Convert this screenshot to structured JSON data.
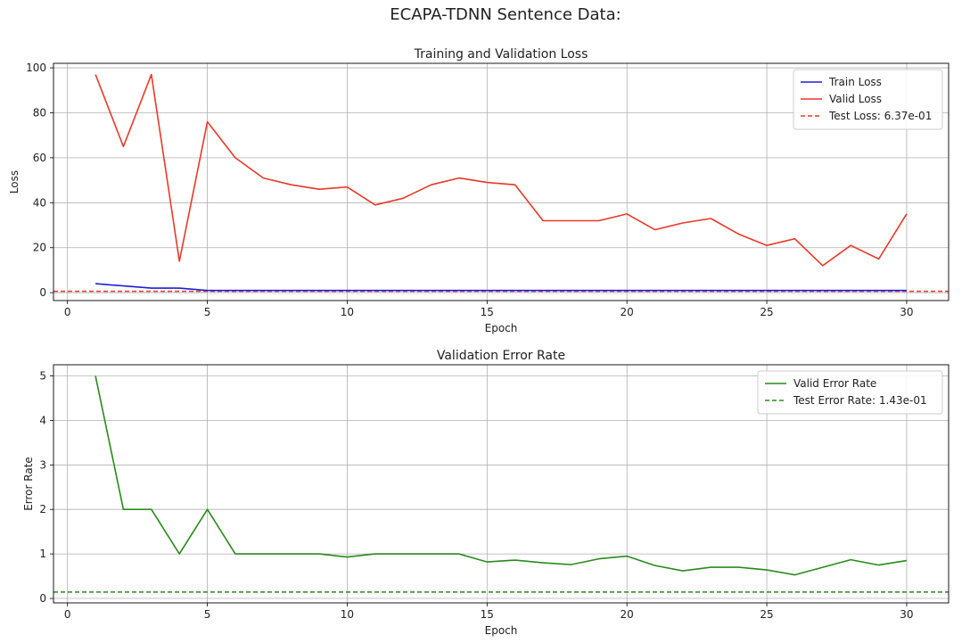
{
  "figure": {
    "suptitle": "ECAPA-TDNN Sentence Data:"
  },
  "chart_data": [
    {
      "type": "line",
      "title": "Training and Validation Loss",
      "xlabel": "Epoch",
      "ylabel": "Loss",
      "xlim": [
        -0.5,
        31.5
      ],
      "ylim": [
        -3.5,
        102
      ],
      "xticks": [
        "0",
        "5",
        "10",
        "15",
        "20",
        "25",
        "30"
      ],
      "yticks": [
        "0",
        "20",
        "40",
        "60",
        "80",
        "100"
      ],
      "grid": true,
      "legend_position": "top-right",
      "x": [
        1,
        2,
        3,
        4,
        5,
        6,
        7,
        8,
        9,
        10,
        11,
        12,
        13,
        14,
        15,
        16,
        17,
        18,
        19,
        20,
        21,
        22,
        23,
        24,
        25,
        26,
        27,
        28,
        29,
        30
      ],
      "series": [
        {
          "name": "Train Loss",
          "color": "#1f1fd6",
          "style": "solid",
          "values": [
            4,
            3,
            2,
            2,
            1,
            1,
            1,
            1,
            1,
            1,
            1,
            1,
            1,
            1,
            1,
            1,
            1,
            1,
            1,
            1,
            1,
            1,
            1,
            1,
            1,
            1,
            1,
            1,
            1,
            1
          ]
        },
        {
          "name": "Valid Loss",
          "color": "#e8392a",
          "style": "solid",
          "values": [
            97,
            65,
            97,
            14,
            76,
            60,
            51,
            48,
            46,
            47,
            39,
            42,
            48,
            51,
            49,
            48,
            32,
            32,
            32,
            35,
            28,
            31,
            33,
            26,
            21,
            24,
            12,
            21,
            15,
            35
          ]
        }
      ],
      "hlines": [
        {
          "name": "Test Loss: 6.37e-01",
          "value": 0.637,
          "color": "#e8392a",
          "style": "dashed"
        }
      ]
    },
    {
      "type": "line",
      "title": "Validation Error Rate",
      "xlabel": "Epoch",
      "ylabel": "Error Rate",
      "xlim": [
        -0.5,
        31.5
      ],
      "ylim": [
        -0.1,
        5.25
      ],
      "xticks": [
        "0",
        "5",
        "10",
        "15",
        "20",
        "25",
        "30"
      ],
      "yticks": [
        "0",
        "1",
        "2",
        "3",
        "4",
        "5"
      ],
      "grid": true,
      "legend_position": "top-right",
      "x": [
        1,
        2,
        3,
        4,
        5,
        6,
        7,
        8,
        9,
        10,
        11,
        12,
        13,
        14,
        15,
        16,
        17,
        18,
        19,
        20,
        21,
        22,
        23,
        24,
        25,
        26,
        27,
        28,
        29,
        30
      ],
      "series": [
        {
          "name": "Valid Error Rate",
          "color": "#2a8a1c",
          "style": "solid",
          "values": [
            5,
            2,
            2,
            1,
            2,
            1,
            1,
            1,
            1,
            0.93,
            1,
            1,
            1,
            1,
            0.82,
            0.86,
            0.8,
            0.76,
            0.89,
            0.95,
            0.74,
            0.62,
            0.7,
            0.7,
            0.64,
            0.53,
            0.7,
            0.87,
            0.75,
            0.85
          ]
        }
      ],
      "hlines": [
        {
          "name": "Test Error Rate: 1.43e-01",
          "value": 0.143,
          "color": "#2a8a1c",
          "style": "dashed"
        }
      ]
    }
  ]
}
